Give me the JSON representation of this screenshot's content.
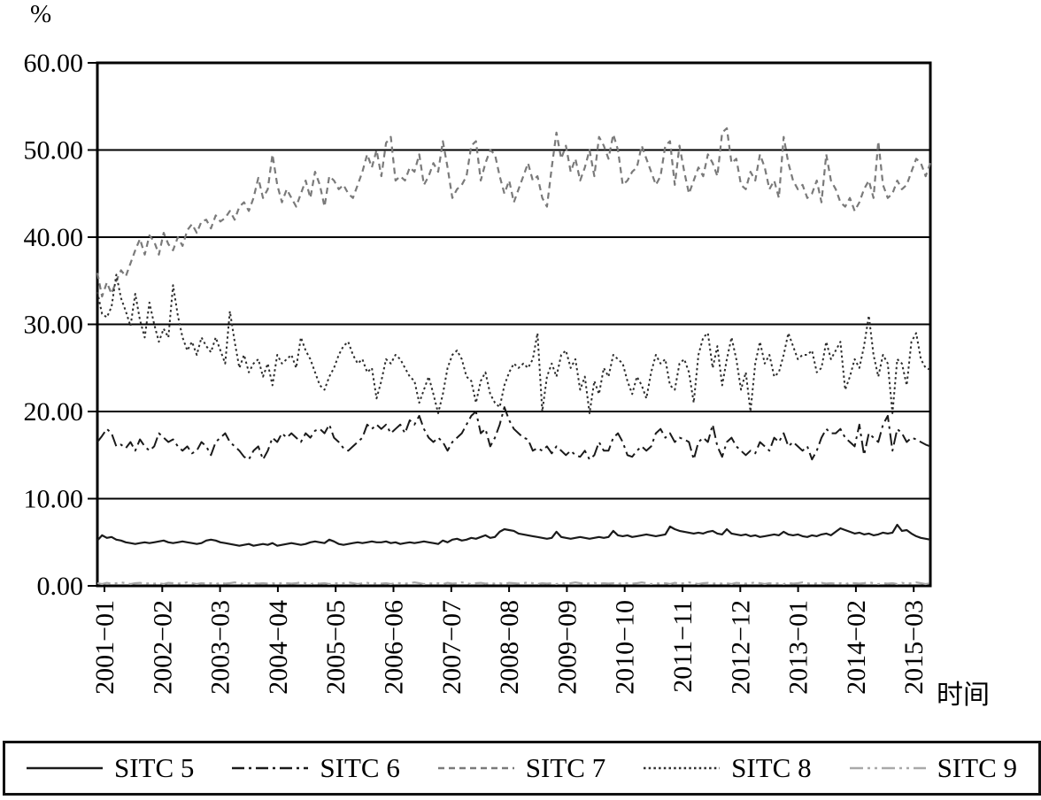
{
  "chart_data": {
    "type": "line",
    "title": "",
    "ylabel": "%",
    "xlabel": "时间",
    "ylim": [
      0,
      60
    ],
    "grid": "horizontal, every 10 units, black",
    "legend_position": "bottom-boxed",
    "y_ticks": [
      {
        "value": 60,
        "label": "60.00"
      },
      {
        "value": 50,
        "label": "50.00"
      },
      {
        "value": 40,
        "label": "40.00"
      },
      {
        "value": 30,
        "label": "30.00"
      },
      {
        "value": 20,
        "label": "20.00"
      },
      {
        "value": 10,
        "label": "10.00"
      },
      {
        "value": 0,
        "label": "0.00"
      }
    ],
    "x_ticks": [
      "2001−01",
      "2002−02",
      "2003−03",
      "2004−04",
      "2005−05",
      "2006−06",
      "2007−07",
      "2008−08",
      "2009−09",
      "2010−10",
      "2011−11",
      "2012−12",
      "2013−01",
      "2014−02",
      "2015−03"
    ],
    "x_range_note": "monthly data 2001-01 through 2015-09",
    "series": [
      {
        "name": "SITC 5",
        "color": "#1a1a1a",
        "style": "solid",
        "width": 2.2,
        "values": [
          5.2,
          5.8,
          5.5,
          5.6,
          5.3,
          5.2,
          5.0,
          4.9,
          4.8,
          4.9,
          5.0,
          4.9,
          5.0,
          5.1,
          5.2,
          5.0,
          4.9,
          5.0,
          5.1,
          5.0,
          4.9,
          4.8,
          4.9,
          5.2,
          5.3,
          5.2,
          5.0,
          4.9,
          4.8,
          4.7,
          4.6,
          4.7,
          4.8,
          4.6,
          4.7,
          4.8,
          4.7,
          4.9,
          4.6,
          4.7,
          4.8,
          4.9,
          4.8,
          4.7,
          4.8,
          5.0,
          5.1,
          5.0,
          4.9,
          5.3,
          5.1,
          4.8,
          4.7,
          4.8,
          4.9,
          5.0,
          4.9,
          5.0,
          5.1,
          5.0,
          5.0,
          5.1,
          4.9,
          5.0,
          4.8,
          4.9,
          5.0,
          4.9,
          5.0,
          5.1,
          5.0,
          4.9,
          4.8,
          5.2,
          5.0,
          5.3,
          5.4,
          5.2,
          5.3,
          5.5,
          5.4,
          5.6,
          5.8,
          5.5,
          5.6,
          6.2,
          6.5,
          6.4,
          6.3,
          6.0,
          5.9,
          5.8,
          5.7,
          5.6,
          5.5,
          5.4,
          5.5,
          6.2,
          5.6,
          5.5,
          5.4,
          5.5,
          5.6,
          5.5,
          5.4,
          5.5,
          5.6,
          5.5,
          5.6,
          6.3,
          5.8,
          5.7,
          5.8,
          5.6,
          5.7,
          5.8,
          5.9,
          5.8,
          5.7,
          5.8,
          5.9,
          6.8,
          6.5,
          6.3,
          6.2,
          6.1,
          6.0,
          6.1,
          6.0,
          6.2,
          6.3,
          6.0,
          5.9,
          6.5,
          6.0,
          5.9,
          5.8,
          5.9,
          5.7,
          5.8,
          5.6,
          5.7,
          5.8,
          5.9,
          5.8,
          6.2,
          5.9,
          5.8,
          5.9,
          5.7,
          5.6,
          5.8,
          5.7,
          5.9,
          6.0,
          5.8,
          6.2,
          6.6,
          6.4,
          6.2,
          6.0,
          6.1,
          5.9,
          6.0,
          5.8,
          5.9,
          6.1,
          6.0,
          6.1,
          7.0,
          6.3,
          6.4,
          6.0,
          5.7,
          5.5,
          5.4,
          5.3
        ]
      },
      {
        "name": "SITC 6",
        "color": "#1a1a1a",
        "style": "dash-dot",
        "width": 2,
        "values": [
          16.5,
          17.2,
          18.0,
          17.5,
          16.0,
          16.2,
          15.8,
          16.5,
          15.5,
          16.8,
          16.0,
          15.5,
          16.0,
          17.5,
          17.0,
          16.5,
          16.8,
          16.0,
          15.5,
          16.0,
          15.2,
          15.5,
          16.5,
          16.0,
          15.0,
          16.5,
          17.0,
          17.5,
          16.5,
          16.0,
          15.5,
          14.8,
          14.5,
          15.5,
          16.0,
          14.5,
          15.5,
          17.0,
          16.5,
          17.5,
          17.0,
          17.5,
          17.0,
          16.5,
          17.5,
          17.0,
          17.8,
          18.0,
          17.5,
          18.5,
          17.0,
          16.5,
          15.8,
          15.5,
          16.0,
          16.5,
          17.0,
          18.5,
          18.0,
          18.5,
          18.0,
          18.5,
          17.5,
          18.0,
          18.5,
          17.5,
          19.0,
          18.5,
          19.5,
          18.0,
          17.0,
          16.5,
          17.0,
          16.5,
          15.5,
          16.5,
          17.0,
          17.5,
          18.5,
          19.5,
          20.0,
          17.5,
          18.0,
          16.0,
          17.0,
          18.5,
          20.5,
          19.0,
          18.0,
          17.5,
          17.0,
          16.8,
          15.5,
          15.8,
          15.5,
          16.0,
          15.2,
          16.0,
          15.5,
          15.0,
          15.5,
          15.0,
          14.8,
          15.5,
          14.5,
          15.0,
          16.5,
          15.5,
          15.5,
          17.0,
          17.5,
          16.5,
          15.0,
          14.8,
          15.5,
          16.0,
          15.5,
          16.0,
          17.5,
          18.0,
          17.0,
          17.5,
          16.5,
          17.0,
          16.8,
          16.5,
          14.5,
          16.5,
          17.0,
          16.5,
          18.5,
          16.0,
          14.8,
          16.5,
          17.0,
          16.0,
          15.5,
          15.0,
          15.5,
          15.2,
          16.5,
          16.0,
          15.5,
          17.0,
          16.5,
          17.5,
          16.0,
          16.5,
          16.0,
          15.5,
          16.0,
          14.5,
          15.5,
          17.0,
          18.0,
          17.5,
          17.5,
          18.0,
          17.0,
          16.5,
          16.0,
          18.5,
          15.0,
          17.5,
          17.0,
          16.5,
          18.5,
          19.5,
          15.5,
          18.0,
          17.5,
          16.5,
          17.0,
          16.8,
          16.5,
          16.2,
          16.0
        ]
      },
      {
        "name": "SITC 7",
        "color": "#7a7a7a",
        "style": "dash",
        "width": 2.2,
        "values": [
          35.9,
          33.2,
          34.8,
          33.5,
          35.0,
          36.2,
          35.5,
          37.0,
          38.5,
          39.8,
          38.0,
          40.2,
          39.5,
          38.0,
          40.5,
          39.2,
          38.5,
          40.0,
          39.0,
          40.8,
          41.5,
          40.5,
          41.8,
          42.0,
          41.0,
          42.5,
          41.8,
          42.2,
          43.0,
          42.0,
          43.5,
          44.0,
          43.0,
          44.5,
          46.8,
          44.5,
          45.5,
          49.5,
          46.0,
          44.0,
          45.5,
          44.5,
          43.5,
          45.0,
          46.5,
          44.5,
          47.5,
          46.0,
          43.5,
          47.0,
          46.5,
          45.5,
          46.0,
          45.0,
          44.5,
          46.0,
          47.5,
          49.5,
          48.0,
          50.0,
          47.0,
          50.8,
          51.5,
          46.5,
          47.0,
          46.5,
          48.0,
          47.5,
          49.5,
          46.0,
          47.0,
          48.5,
          47.5,
          51.0,
          48.0,
          44.5,
          45.5,
          46.0,
          47.0,
          50.5,
          51.0,
          46.5,
          48.5,
          50.0,
          49.5,
          47.0,
          45.0,
          46.5,
          44.0,
          45.5,
          47.0,
          48.5,
          46.5,
          47.0,
          44.5,
          43.5,
          48.0,
          52.0,
          49.0,
          50.5,
          47.5,
          49.0,
          46.5,
          48.0,
          50.0,
          47.0,
          51.5,
          50.5,
          49.0,
          51.8,
          50.0,
          46.0,
          46.5,
          47.5,
          48.0,
          50.5,
          49.0,
          47.5,
          46.0,
          47.0,
          50.5,
          51.0,
          46.0,
          50.5,
          47.5,
          45.0,
          46.5,
          48.0,
          47.0,
          49.5,
          48.5,
          47.0,
          52.0,
          52.5,
          48.5,
          49.0,
          46.0,
          45.5,
          47.5,
          46.5,
          49.5,
          48.0,
          45.5,
          46.5,
          44.5,
          51.5,
          48.5,
          46.5,
          45.5,
          46.0,
          44.5,
          45.0,
          46.5,
          44.0,
          49.5,
          46.5,
          45.5,
          44.0,
          43.5,
          44.5,
          43.0,
          44.0,
          45.5,
          46.5,
          44.5,
          51.0,
          46.0,
          44.5,
          45.0,
          46.5,
          45.5,
          46.0,
          47.5,
          49.0,
          48.5,
          47.0,
          48.5
        ]
      },
      {
        "name": "SITC 8",
        "color": "#2e2e2e",
        "style": "dot",
        "width": 2,
        "values": [
          33.7,
          31.2,
          30.8,
          32.0,
          35.7,
          33.0,
          31.5,
          29.8,
          33.5,
          30.5,
          28.5,
          32.5,
          30.0,
          28.0,
          29.5,
          28.5,
          34.5,
          31.0,
          28.5,
          27.0,
          28.0,
          26.5,
          28.5,
          27.5,
          26.8,
          28.5,
          27.0,
          25.5,
          31.5,
          28.0,
          25.0,
          26.5,
          24.5,
          25.5,
          26.0,
          24.0,
          25.5,
          23.0,
          26.5,
          25.5,
          26.0,
          26.5,
          25.0,
          28.5,
          27.0,
          26.0,
          24.5,
          23.0,
          22.5,
          24.0,
          25.0,
          26.5,
          27.5,
          28.0,
          26.5,
          25.5,
          26.0,
          24.5,
          25.0,
          21.5,
          23.5,
          26.0,
          25.5,
          26.5,
          26.0,
          25.0,
          24.0,
          23.5,
          21.0,
          22.5,
          24.0,
          22.0,
          19.8,
          22.0,
          25.0,
          26.5,
          27.0,
          26.0,
          24.0,
          23.5,
          21.0,
          23.5,
          24.5,
          22.0,
          21.0,
          20.5,
          23.0,
          24.5,
          25.5,
          25.0,
          25.5,
          25.0,
          26.0,
          29.0,
          20.0,
          24.0,
          25.5,
          24.0,
          26.5,
          27.0,
          25.0,
          26.0,
          22.5,
          24.0,
          19.8,
          23.5,
          22.0,
          25.0,
          24.0,
          26.5,
          26.0,
          25.5,
          23.5,
          22.0,
          24.0,
          23.0,
          21.5,
          24.5,
          26.5,
          25.5,
          26.0,
          23.0,
          22.5,
          25.5,
          26.0,
          24.5,
          21.0,
          26.5,
          28.5,
          29.0,
          25.0,
          27.5,
          23.0,
          26.0,
          28.5,
          26.0,
          22.5,
          24.5,
          20.0,
          25.5,
          28.0,
          25.5,
          26.5,
          24.0,
          24.5,
          26.5,
          29.0,
          27.5,
          26.0,
          26.5,
          26.5,
          27.0,
          24.5,
          25.0,
          28.0,
          26.0,
          27.0,
          28.0,
          22.5,
          24.0,
          26.0,
          25.0,
          27.5,
          31.0,
          26.5,
          24.0,
          26.5,
          25.5,
          19.8,
          26.0,
          25.5,
          23.0,
          28.0,
          29.0,
          26.0,
          25.0,
          24.8
        ]
      },
      {
        "name": "SITC 9",
        "color": "#a9a9a9",
        "style": "dash-dot-dot",
        "width": 2.2,
        "values": [
          0.3,
          0.2,
          0.35,
          0.25,
          0.3,
          0.4,
          0.3,
          0.2,
          0.3,
          0.35,
          0.25,
          0.3,
          0.25,
          0.3,
          0.2,
          0.35,
          0.3,
          0.25,
          0.3,
          0.4,
          0.3,
          0.2,
          0.3,
          0.25,
          0.3,
          0.2,
          0.35,
          0.25,
          0.3,
          0.4,
          0.3,
          0.2,
          0.3,
          0.35,
          0.25,
          0.3,
          0.25,
          0.3,
          0.2,
          0.35,
          0.3,
          0.25,
          0.3,
          0.4,
          0.3,
          0.2,
          0.3,
          0.25,
          0.3,
          0.2,
          0.35,
          0.25,
          0.3,
          0.4,
          0.3,
          0.2,
          0.3,
          0.35,
          0.25,
          0.3,
          0.25,
          0.3,
          0.2,
          0.35,
          0.3,
          0.25,
          0.3,
          0.4,
          0.3,
          0.2,
          0.3,
          0.25,
          0.3,
          0.2,
          0.35,
          0.25,
          0.3,
          0.4,
          0.3,
          0.2,
          0.3,
          0.35,
          0.25,
          0.3,
          0.25,
          0.3,
          0.2,
          0.35,
          0.3,
          0.25,
          0.3,
          0.4,
          0.3,
          0.2,
          0.3,
          0.25,
          0.3,
          0.2,
          0.35,
          0.25,
          0.3,
          0.4,
          0.3,
          0.2,
          0.3,
          0.35,
          0.25,
          0.3,
          0.25,
          0.3,
          0.2,
          0.35,
          0.3,
          0.25,
          0.3,
          0.4,
          0.3,
          0.2,
          0.3,
          0.25,
          0.3,
          0.2,
          0.35,
          0.25,
          0.3,
          0.4,
          0.3,
          0.2,
          0.3,
          0.35,
          0.25,
          0.3,
          0.25,
          0.3,
          0.2,
          0.35,
          0.3,
          0.25,
          0.3,
          0.4,
          0.3,
          0.2,
          0.3,
          0.25,
          0.3,
          0.2,
          0.35,
          0.25,
          0.3,
          0.4,
          0.3,
          0.2,
          0.3,
          0.35,
          0.25,
          0.3,
          0.25,
          0.3,
          0.2,
          0.35,
          0.3,
          0.25,
          0.3,
          0.4,
          0.3,
          0.2,
          0.3,
          0.25,
          0.3,
          0.2,
          0.35,
          0.25,
          0.3,
          0.4,
          0.3,
          0.2,
          0.3
        ]
      }
    ]
  }
}
